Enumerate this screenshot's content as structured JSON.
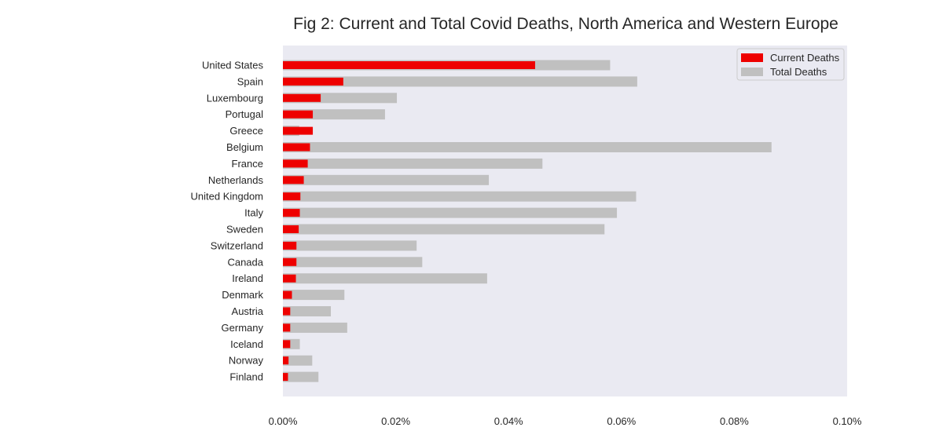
{
  "chart_data": {
    "type": "bar",
    "orientation": "horizontal",
    "title": "Fig 2: Current and Total Covid Deaths, North America and Western Europe",
    "xlabel": "",
    "ylabel": "",
    "xlim": [
      0,
      0.1
    ],
    "x_unit": "%",
    "x_ticks": [
      "0.00%",
      "0.02%",
      "0.04%",
      "0.06%",
      "0.08%",
      "0.10%"
    ],
    "grid": false,
    "legend_position": "top-right",
    "categories": [
      "United States",
      "Spain",
      "Luxembourg",
      "Portugal",
      "Greece",
      "Belgium",
      "France",
      "Netherlands",
      "United Kingdom",
      "Italy",
      "Sweden",
      "Switzerland",
      "Canada",
      "Ireland",
      "Denmark",
      "Austria",
      "Germany",
      "Iceland",
      "Norway",
      "Finland"
    ],
    "series": [
      {
        "name": "Total Deaths",
        "color": "#c0c0c0",
        "values": [
          0.058,
          0.0628,
          0.0202,
          0.0181,
          0.0029,
          0.0866,
          0.046,
          0.0365,
          0.0626,
          0.0592,
          0.057,
          0.0237,
          0.0247,
          0.0362,
          0.0109,
          0.0085,
          0.0114,
          0.003,
          0.0052,
          0.0063
        ]
      },
      {
        "name": "Current Deaths",
        "color": "#ee0000",
        "values": [
          0.0447,
          0.0107,
          0.0067,
          0.0053,
          0.0053,
          0.0048,
          0.0044,
          0.0037,
          0.0031,
          0.003,
          0.0028,
          0.0024,
          0.0024,
          0.0023,
          0.0016,
          0.0013,
          0.0013,
          0.0013,
          0.001,
          0.0009
        ]
      }
    ]
  }
}
